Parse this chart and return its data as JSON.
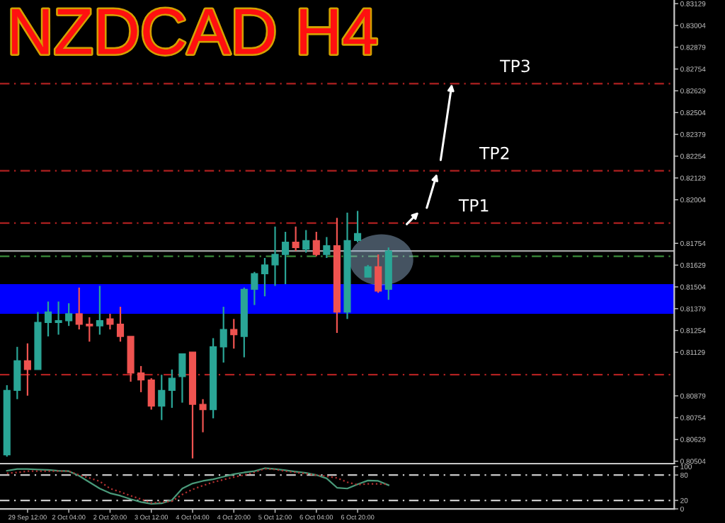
{
  "chart_data": [
    {
      "type": "candlestick",
      "title": "NZDCAD H4",
      "categories": [
        null,
        null,
        null,
        null,
        null,
        null,
        null,
        null,
        null,
        null,
        null,
        null,
        null,
        null,
        null,
        null,
        null,
        null,
        null,
        null,
        null,
        null,
        null,
        null,
        null,
        null,
        null,
        null,
        null,
        null,
        null,
        null,
        null,
        null,
        null,
        null,
        null,
        null,
        null,
        null,
        null,
        null,
        null,
        null,
        null,
        null,
        null,
        null,
        null,
        null,
        null,
        null,
        null,
        null,
        null,
        null,
        null,
        null,
        null,
        null,
        null,
        null,
        null,
        null,
        null
      ],
      "ohlc": [
        [
          0.8054,
          0.8094,
          0.8053,
          0.8091
        ],
        [
          0.8091,
          0.8116,
          0.8086,
          0.8108
        ],
        [
          0.8108,
          0.8118,
          0.8088,
          0.8103
        ],
        [
          0.8103,
          0.8136,
          0.8103,
          0.813
        ],
        [
          0.813,
          0.8142,
          0.8122,
          0.8136
        ],
        [
          0.813,
          0.8142,
          0.8123,
          0.8131
        ],
        [
          0.8131,
          0.8141,
          0.8128,
          0.8135
        ],
        [
          0.8135,
          0.815,
          0.8126,
          0.8129
        ],
        [
          0.8129,
          0.8133,
          0.8119,
          0.8128
        ],
        [
          0.8128,
          0.8151,
          0.8123,
          0.8131
        ],
        [
          0.8132,
          0.8135,
          0.8126,
          0.8129
        ],
        [
          0.8129,
          0.8139,
          0.8119,
          0.8122
        ],
        [
          0.8122,
          0.8122,
          0.8096,
          0.8101
        ],
        [
          0.8101,
          0.8105,
          0.809,
          0.8097
        ],
        [
          0.8097,
          0.8098,
          0.808,
          0.8082
        ],
        [
          0.8082,
          0.81,
          0.8074,
          0.8091
        ],
        [
          0.8091,
          0.8103,
          0.8081,
          0.8098
        ],
        [
          0.8099,
          0.8112,
          0.8084,
          0.8112
        ],
        [
          0.8113,
          0.8113,
          0.8052,
          0.8083
        ],
        [
          0.8083,
          0.8086,
          0.8067,
          0.808
        ],
        [
          0.808,
          0.8121,
          0.8075,
          0.8116
        ],
        [
          0.8116,
          0.8139,
          0.8107,
          0.8126
        ],
        [
          0.8126,
          0.8132,
          0.8115,
          0.8123
        ],
        [
          0.8122,
          0.815,
          0.811,
          0.8149
        ],
        [
          0.8149,
          0.8159,
          0.814,
          0.8158
        ],
        [
          0.8158,
          0.8167,
          0.8145,
          0.8163
        ],
        [
          0.8163,
          0.8185,
          0.8151,
          0.8169
        ],
        [
          0.8169,
          0.8182,
          0.8152,
          0.8176
        ],
        [
          0.8176,
          0.8185,
          0.8171,
          0.8173
        ],
        [
          0.8172,
          0.8183,
          0.817,
          0.8177
        ],
        [
          0.8177,
          0.8182,
          0.8168,
          0.8169
        ],
        [
          0.8169,
          0.8179,
          0.8167,
          0.8174
        ],
        [
          0.8174,
          0.819,
          0.8124,
          0.8136
        ],
        [
          0.8136,
          0.8193,
          0.8132,
          0.8177
        ],
        [
          0.8177,
          0.8194,
          0.8176,
          0.8181
        ],
        [
          0.8156,
          0.8163,
          0.8156,
          0.8162
        ],
        [
          0.8162,
          0.8169,
          0.8147,
          0.8148
        ],
        [
          0.8149,
          0.8173,
          0.8143,
          0.8171
        ],
        null,
        null,
        null,
        null,
        null,
        null,
        null,
        null,
        null,
        null,
        null,
        null,
        null,
        null,
        null,
        null,
        null,
        null,
        null,
        null,
        null,
        null,
        null,
        null,
        null,
        null,
        null
      ],
      "ylim": [
        0.8049,
        0.8315
      ],
      "yticks": [
        0.80504,
        0.80629,
        0.80754,
        0.80879,
        0.81129,
        0.81254,
        0.81379,
        0.81504,
        0.81629,
        0.81754,
        0.82004,
        0.82129,
        0.82254,
        0.82379,
        0.82504,
        0.82629,
        0.82754,
        0.82879,
        0.83004,
        0.83129
      ],
      "ref_lines": [
        {
          "axis": "y",
          "value": 0.8267,
          "color": "#b02020",
          "line_style": "dashed"
        },
        {
          "axis": "y",
          "value": 0.8217,
          "color": "#b02020",
          "line_style": "dashed"
        },
        {
          "axis": "y",
          "value": 0.8187,
          "color": "#b02020",
          "line_style": "dashed"
        },
        {
          "axis": "y",
          "value": 0.81,
          "color": "#b02020",
          "line_style": "dashed"
        },
        {
          "axis": "y",
          "value": 0.8171,
          "color": "#a0a0a0",
          "line_style": "solid"
        },
        {
          "axis": "y",
          "value": 0.8168,
          "color": "#3a8a3a",
          "line_style": "dashed"
        }
      ],
      "bands": [
        {
          "axis": "y",
          "from": 0.8135,
          "to": 0.8152,
          "color": "#0000ff"
        }
      ],
      "annotations": [
        "TP1",
        "TP2",
        "TP3"
      ]
    },
    {
      "type": "line",
      "categories": [
        null,
        null,
        "29 Sep 12:00",
        null,
        null,
        null,
        "2 Oct 04:00",
        null,
        null,
        null,
        "2 Oct 20:00",
        null,
        null,
        null,
        "3 Oct 12:00",
        null,
        null,
        null,
        "4 Oct 04:00",
        null,
        null,
        null,
        "4 Oct 20:00",
        null,
        null,
        null,
        "5 Oct 12:00",
        null,
        null,
        null,
        "6 Oct 04:00",
        null,
        null,
        null,
        "6 Oct 20:00",
        null,
        null,
        null,
        null,
        null,
        null,
        null,
        null,
        null,
        null,
        null,
        null,
        null,
        null,
        null,
        null,
        null,
        null,
        null,
        null,
        null,
        null,
        null,
        null,
        null,
        null,
        null,
        null,
        null,
        null
      ],
      "series": [
        {
          "color": "#4a9a7a",
          "line_style": "solid",
          "values": [
            90,
            94,
            94,
            93,
            92,
            90,
            89,
            78,
            63,
            48,
            37,
            31,
            23,
            16,
            12,
            13,
            21,
            48,
            60,
            66,
            70,
            76,
            82,
            86,
            89,
            96,
            94,
            91,
            88,
            85,
            80,
            72,
            50,
            48,
            58,
            67,
            66,
            56,
            null,
            null,
            null,
            null,
            null,
            null,
            null,
            null,
            null,
            null,
            null,
            null,
            null,
            null,
            null,
            null,
            null,
            null,
            null,
            null,
            null,
            null,
            null,
            null,
            null,
            null,
            null
          ]
        },
        {
          "color": "#b03030",
          "line_style": "dotted",
          "values": [
            84,
            86,
            89,
            89,
            89,
            89,
            89,
            80,
            73,
            65,
            48,
            40,
            31,
            23,
            14,
            16,
            18,
            34,
            46,
            55,
            63,
            69,
            75,
            80,
            86,
            95,
            93,
            89,
            86,
            83,
            80,
            77,
            73,
            63,
            57,
            59,
            59,
            58,
            null,
            null,
            null,
            null,
            null,
            null,
            null,
            null,
            null,
            null,
            null,
            null,
            null,
            null,
            null,
            null,
            null,
            null,
            null,
            null,
            null,
            null,
            null,
            null,
            null,
            null,
            null
          ]
        }
      ],
      "ylim": [
        0,
        100
      ],
      "yticks": [
        0,
        20,
        80,
        100
      ],
      "ref_lines": [
        {
          "axis": "y",
          "value": 80,
          "color": "#c8c8c8",
          "line_style": "dashed"
        },
        {
          "axis": "y",
          "value": 20,
          "color": "#c8c8c8",
          "line_style": "dashed"
        }
      ]
    }
  ]
}
